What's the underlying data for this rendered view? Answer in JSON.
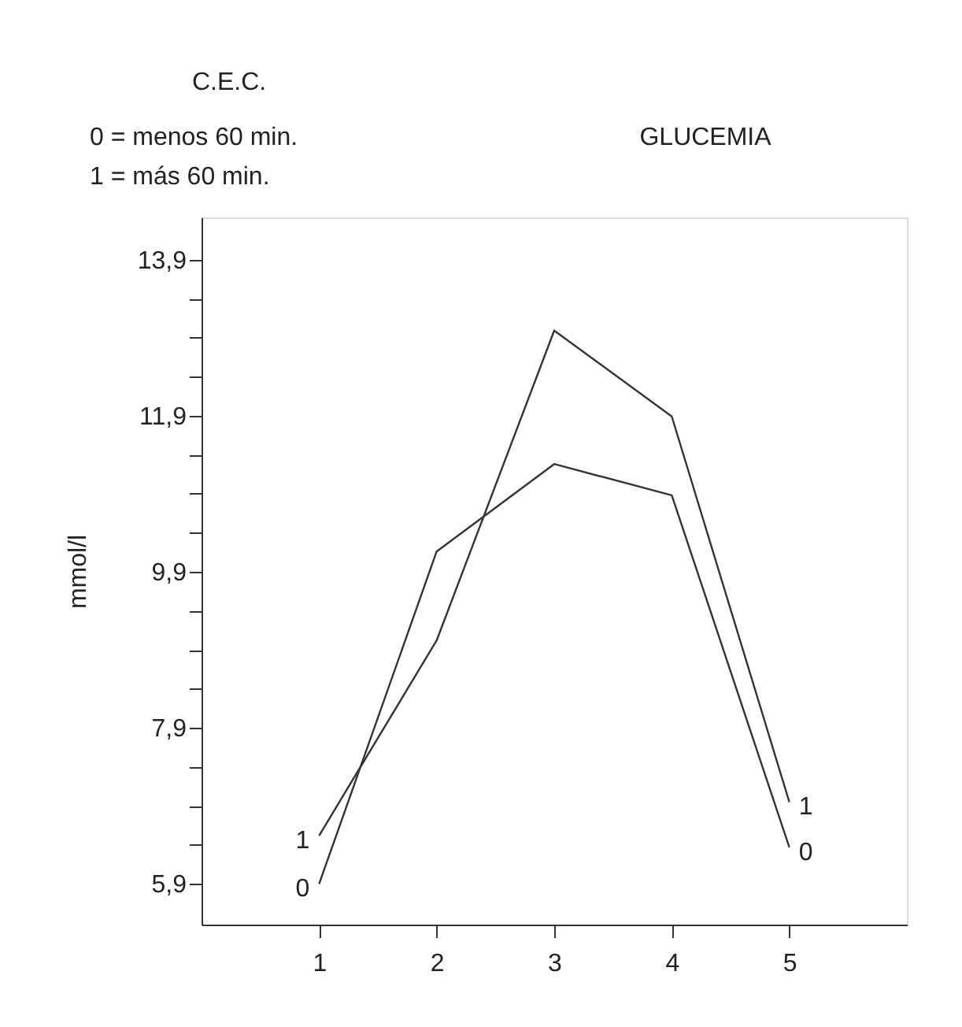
{
  "chart_data": {
    "type": "line",
    "title": "GLUCEMIA",
    "ylabel": "mmol/l",
    "legend_title": "C.E.C.",
    "annotations": [
      "0 = menos 60 min.",
      "1 = más 60 min."
    ],
    "x": [
      1,
      2,
      3,
      4,
      5
    ],
    "series": [
      {
        "name": "0",
        "color": "#333333",
        "values": [
          5.9,
          10.16,
          11.28,
          10.88,
          6.37
        ]
      },
      {
        "name": "1",
        "color": "#333333",
        "values": [
          6.52,
          9.02,
          12.99,
          11.89,
          6.95
        ]
      }
    ],
    "xlim": [
      0,
      6
    ],
    "xticks": [
      1,
      2,
      3,
      4,
      5
    ],
    "ylim": [
      5.38,
      14.44
    ],
    "yticks": [
      {
        "value": 5.9,
        "label": "5,9"
      },
      {
        "value": 6.4,
        "label": null
      },
      {
        "value": 6.9,
        "label": null
      },
      {
        "value": 7.4,
        "label": null
      },
      {
        "value": 7.9,
        "label": "7,9"
      },
      {
        "value": 8.4,
        "label": null
      },
      {
        "value": 8.9,
        "label": null
      },
      {
        "value": 9.4,
        "label": null
      },
      {
        "value": 9.9,
        "label": "9,9"
      },
      {
        "value": 10.4,
        "label": null
      },
      {
        "value": 10.9,
        "label": null
      },
      {
        "value": 11.4,
        "label": null
      },
      {
        "value": 11.9,
        "label": "11,9"
      },
      {
        "value": 12.4,
        "label": null
      },
      {
        "value": 12.9,
        "label": null
      },
      {
        "value": 13.4,
        "label": null
      },
      {
        "value": 13.9,
        "label": "13,9"
      }
    ],
    "grid": false,
    "marker": "none",
    "line_style": "solid"
  }
}
